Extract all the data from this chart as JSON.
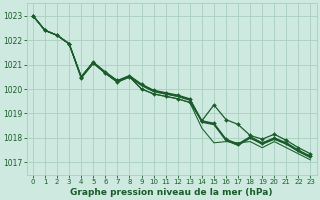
{
  "xlabel": "Graphe pression niveau de la mer (hPa)",
  "ylim": [
    1016.5,
    1023.5
  ],
  "xlim": [
    -0.5,
    23.5
  ],
  "yticks": [
    1017,
    1018,
    1019,
    1020,
    1021,
    1022,
    1023
  ],
  "xticks": [
    0,
    1,
    2,
    3,
    4,
    5,
    6,
    7,
    8,
    9,
    10,
    11,
    12,
    13,
    14,
    15,
    16,
    17,
    18,
    19,
    20,
    21,
    22,
    23
  ],
  "bg_color": "#ceeae0",
  "grid_color": "#a8cfc0",
  "line_color": "#1a5c2a",
  "line_width": 0.9,
  "marker_size": 2.0,
  "lines": [
    [
      1023.0,
      1022.4,
      1022.2,
      1021.85,
      1020.5,
      1021.1,
      1020.7,
      1020.35,
      1020.55,
      1020.2,
      1019.95,
      1019.85,
      1019.75,
      1019.6,
      1018.7,
      1018.6,
      1017.95,
      1017.75,
      1018.05,
      1017.8,
      1018.0,
      1017.8,
      1017.5,
      1017.25
    ],
    [
      1023.0,
      1022.4,
      1022.2,
      1021.85,
      1020.5,
      1021.1,
      1020.68,
      1020.33,
      1020.53,
      1020.18,
      1019.93,
      1019.83,
      1019.73,
      1019.58,
      1018.68,
      1018.58,
      1017.93,
      1017.73,
      1018.03,
      1017.78,
      1017.98,
      1017.78,
      1017.48,
      1017.23
    ],
    [
      1023.0,
      1022.4,
      1022.2,
      1021.85,
      1020.5,
      1021.1,
      1020.66,
      1020.31,
      1020.51,
      1020.16,
      1019.91,
      1019.81,
      1019.71,
      1019.56,
      1018.66,
      1018.56,
      1017.91,
      1017.71,
      1018.01,
      1017.76,
      1017.96,
      1017.76,
      1017.46,
      1017.21
    ],
    [
      1023.0,
      1022.4,
      1022.2,
      1021.85,
      1020.5,
      1021.1,
      1020.64,
      1020.29,
      1020.49,
      1020.14,
      1019.89,
      1019.79,
      1019.69,
      1019.54,
      1018.64,
      1018.54,
      1017.89,
      1017.69,
      1017.99,
      1017.74,
      1017.94,
      1017.74,
      1017.44,
      1017.19
    ]
  ],
  "line_diverge": [
    1023.0,
    1022.4,
    1022.2,
    1021.85,
    1020.45,
    1021.05,
    1020.65,
    1020.28,
    1020.5,
    1020.0,
    1019.8,
    1019.7,
    1019.6,
    1019.45,
    1018.7,
    1019.35,
    1018.75,
    1018.55,
    1018.1,
    1017.95,
    1018.15,
    1017.9,
    1017.6,
    1017.35
  ],
  "line_low": [
    1023.0,
    1022.4,
    1022.2,
    1021.85,
    1020.45,
    1021.05,
    1020.65,
    1020.28,
    1020.5,
    1020.0,
    1019.8,
    1019.7,
    1019.6,
    1019.45,
    1018.4,
    1017.8,
    1017.85,
    1017.8,
    1017.85,
    1017.6,
    1017.85,
    1017.6,
    1017.35,
    1017.1
  ]
}
